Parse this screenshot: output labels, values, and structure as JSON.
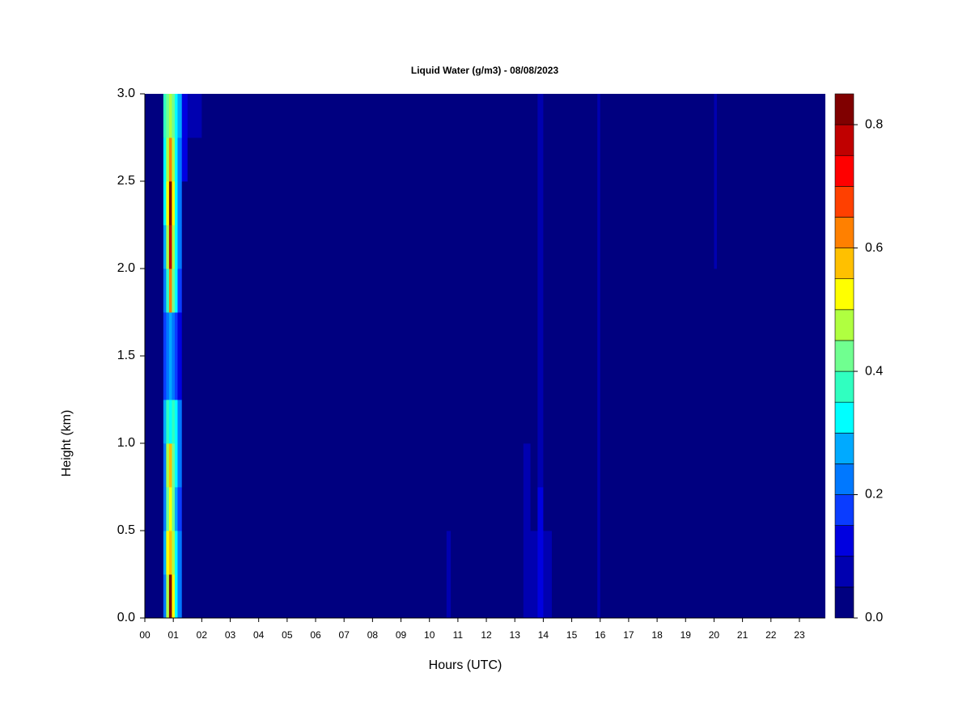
{
  "chart_data": {
    "type": "heatmap",
    "title": "Liquid Water (g/m3) - 08/08/2023",
    "x_label": "Hours (UTC)",
    "y_label": "Height (km)",
    "xlim": [
      0,
      23.9
    ],
    "ylim": [
      0,
      3
    ],
    "xticks": [
      {
        "value": 0,
        "label": "00"
      },
      {
        "value": 1,
        "label": "01"
      },
      {
        "value": 2,
        "label": "02"
      },
      {
        "value": 3,
        "label": "03"
      },
      {
        "value": 4,
        "label": "04"
      },
      {
        "value": 5,
        "label": "05"
      },
      {
        "value": 6,
        "label": "06"
      },
      {
        "value": 7,
        "label": "07"
      },
      {
        "value": 8,
        "label": "08"
      },
      {
        "value": 9,
        "label": "09"
      },
      {
        "value": 10,
        "label": "10"
      },
      {
        "value": 11,
        "label": "11"
      },
      {
        "value": 12,
        "label": "12"
      },
      {
        "value": 13,
        "label": "13"
      },
      {
        "value": 14,
        "label": "14"
      },
      {
        "value": 15,
        "label": "15"
      },
      {
        "value": 16,
        "label": "16"
      },
      {
        "value": 17,
        "label": "17"
      },
      {
        "value": 18,
        "label": "18"
      },
      {
        "value": 19,
        "label": "19"
      },
      {
        "value": 20,
        "label": "20"
      },
      {
        "value": 21,
        "label": "21"
      },
      {
        "value": 22,
        "label": "22"
      },
      {
        "value": 23,
        "label": "23"
      }
    ],
    "yticks": [
      {
        "value": 0,
        "label": "0.0"
      },
      {
        "value": 0.5,
        "label": "0.5"
      },
      {
        "value": 1,
        "label": "1.0"
      },
      {
        "value": 1.5,
        "label": "1.5"
      },
      {
        "value": 2,
        "label": "2.0"
      },
      {
        "value": 2.5,
        "label": "2.5"
      },
      {
        "value": 3,
        "label": "3.0"
      }
    ],
    "x_edges": [
      0,
      0.65,
      0.75,
      0.85,
      0.95,
      1.05,
      1.15,
      1.3,
      1.5,
      2.0,
      10.6,
      10.75,
      13.3,
      13.55,
      13.8,
      14.0,
      14.3,
      15.9,
      16.0,
      20.0,
      20.1,
      23.9
    ],
    "y_edges": [
      0,
      0.25,
      0.5,
      0.75,
      1.0,
      1.25,
      1.5,
      1.75,
      2.0,
      2.25,
      2.5,
      2.75,
      3.0
    ],
    "values": [
      [
        0.02,
        0.2,
        0.45,
        0.8,
        0.5,
        0.3,
        0.2,
        0.03,
        0.02,
        0.02,
        0.07,
        0.02,
        0.08,
        0.06,
        0.1,
        0.07,
        0.02,
        0.07,
        0.02,
        0.02,
        0.02
      ],
      [
        0.02,
        0.25,
        0.5,
        0.55,
        0.45,
        0.3,
        0.2,
        0.03,
        0.02,
        0.02,
        0.07,
        0.02,
        0.08,
        0.06,
        0.1,
        0.07,
        0.02,
        0.07,
        0.02,
        0.02,
        0.02
      ],
      [
        0.02,
        0.2,
        0.4,
        0.5,
        0.4,
        0.25,
        0.15,
        0.03,
        0.02,
        0.02,
        0.02,
        0.02,
        0.08,
        0.02,
        0.1,
        0.02,
        0.02,
        0.07,
        0.02,
        0.02,
        0.02
      ],
      [
        0.02,
        0.2,
        0.45,
        0.55,
        0.4,
        0.3,
        0.2,
        0.03,
        0.02,
        0.02,
        0.02,
        0.02,
        0.06,
        0.02,
        0.06,
        0.02,
        0.02,
        0.07,
        0.02,
        0.02,
        0.02
      ],
      [
        0.02,
        0.25,
        0.35,
        0.3,
        0.35,
        0.3,
        0.2,
        0.03,
        0.02,
        0.02,
        0.02,
        0.02,
        0.02,
        0.02,
        0.06,
        0.02,
        0.02,
        0.07,
        0.02,
        0.02,
        0.02
      ],
      [
        0.02,
        0.15,
        0.2,
        0.25,
        0.2,
        0.15,
        0.1,
        0.03,
        0.02,
        0.02,
        0.02,
        0.02,
        0.02,
        0.02,
        0.06,
        0.02,
        0.02,
        0.07,
        0.02,
        0.02,
        0.02
      ],
      [
        0.02,
        0.15,
        0.2,
        0.25,
        0.2,
        0.15,
        0.1,
        0.03,
        0.02,
        0.02,
        0.02,
        0.02,
        0.02,
        0.02,
        0.06,
        0.02,
        0.02,
        0.07,
        0.02,
        0.02,
        0.02
      ],
      [
        0.02,
        0.2,
        0.35,
        0.6,
        0.4,
        0.3,
        0.15,
        0.03,
        0.02,
        0.02,
        0.02,
        0.02,
        0.02,
        0.02,
        0.06,
        0.02,
        0.02,
        0.07,
        0.02,
        0.02,
        0.02
      ],
      [
        0.02,
        0.25,
        0.45,
        0.75,
        0.45,
        0.3,
        0.2,
        0.03,
        0.02,
        0.02,
        0.02,
        0.02,
        0.02,
        0.02,
        0.06,
        0.02,
        0.02,
        0.07,
        0.02,
        0.06,
        0.02
      ],
      [
        0.02,
        0.3,
        0.5,
        0.8,
        0.5,
        0.3,
        0.2,
        0.03,
        0.02,
        0.02,
        0.02,
        0.02,
        0.02,
        0.02,
        0.06,
        0.02,
        0.02,
        0.07,
        0.02,
        0.06,
        0.02
      ],
      [
        0.02,
        0.3,
        0.45,
        0.6,
        0.45,
        0.3,
        0.2,
        0.1,
        0.02,
        0.02,
        0.02,
        0.02,
        0.02,
        0.02,
        0.06,
        0.02,
        0.02,
        0.07,
        0.02,
        0.06,
        0.02
      ],
      [
        0.02,
        0.35,
        0.4,
        0.45,
        0.4,
        0.3,
        0.25,
        0.1,
        0.06,
        0.02,
        0.02,
        0.02,
        0.02,
        0.02,
        0.06,
        0.02,
        0.02,
        0.07,
        0.02,
        0.06,
        0.02
      ]
    ],
    "levels": [
      0,
      0.05,
      0.1,
      0.15,
      0.2,
      0.25,
      0.3,
      0.35,
      0.4,
      0.45,
      0.5,
      0.55,
      0.6,
      0.65,
      0.7,
      0.75,
      0.8,
      0.85
    ],
    "colors": [
      "#000080",
      "#0000B0",
      "#0000E0",
      "#0A3CFF",
      "#0078FF",
      "#00AAFF",
      "#00FFFF",
      "#30FFC0",
      "#70FF90",
      "#B0FF40",
      "#FFFF00",
      "#FFC000",
      "#FF8000",
      "#FF4000",
      "#FF0000",
      "#C00000",
      "#800000"
    ],
    "colorbar_ticks": [
      {
        "value": 0,
        "label": "0.0"
      },
      {
        "value": 0.2,
        "label": "0.2"
      },
      {
        "value": 0.4,
        "label": "0.4"
      },
      {
        "value": 0.6,
        "label": "0.6"
      },
      {
        "value": 0.8,
        "label": "0.8"
      }
    ]
  }
}
